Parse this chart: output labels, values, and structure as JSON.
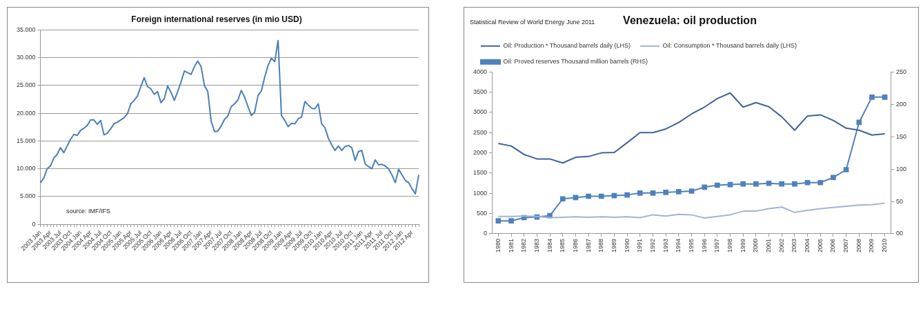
{
  "chart_data": [
    {
      "type": "line",
      "title": "Foreign international reserves (in mio USD)",
      "categories": [
        "2003 Jan",
        null,
        null,
        "2003 Apr",
        null,
        null,
        "2003 Jul",
        null,
        null,
        "2003 Oct",
        null,
        null,
        "2004 Jan",
        null,
        null,
        "2004 Apr",
        null,
        null,
        "2004 Jul",
        null,
        null,
        "2004 Oct",
        null,
        null,
        "2005 Jan",
        null,
        null,
        "2005 Apr",
        null,
        null,
        "2005 Jul",
        null,
        null,
        "2005 Oct",
        null,
        null,
        "2006 Jan",
        null,
        null,
        "2006 Apr",
        null,
        null,
        "2006 Jul",
        null,
        null,
        "2006 Oct",
        null,
        null,
        "2007 Jan",
        null,
        null,
        "2007 Apr",
        null,
        null,
        "2007 Jul",
        null,
        null,
        "2007 Oct",
        null,
        null,
        "2008 Jan",
        null,
        null,
        "2008 Apr",
        null,
        null,
        "2008 Jul",
        null,
        null,
        "2008 Oct",
        null,
        null,
        "2009 Jan",
        null,
        null,
        "2009 Apr",
        null,
        null,
        "2009 Jul",
        null,
        null,
        "2009 Oct",
        null,
        null,
        "2010 Jan",
        null,
        null,
        "2010 Apr",
        null,
        null,
        "2010 Jul",
        null,
        null,
        "2010 Oct",
        null,
        null,
        "2011 Jan",
        null,
        null,
        "2011 Apr",
        null,
        null,
        "2011 Jul",
        null,
        null,
        "2011 Oct",
        null,
        null,
        "2012 Jan",
        null,
        null,
        "2012 Apr",
        null,
        null
      ],
      "series": [
        {
          "color": "#4a7ebb",
          "values": [
            7500,
            8300,
            10000,
            10500,
            11900,
            12600,
            13800,
            12900,
            14100,
            15300,
            16200,
            16000,
            16900,
            17300,
            17800,
            18800,
            18800,
            18000,
            18700,
            16100,
            16400,
            17200,
            18100,
            18400,
            18800,
            19200,
            19900,
            21700,
            22300,
            23100,
            24800,
            26400,
            24800,
            24400,
            23400,
            23900,
            21900,
            22600,
            24900,
            23800,
            22300,
            23900,
            25600,
            27600,
            27300,
            27000,
            28400,
            29400,
            28400,
            25000,
            23900,
            18600,
            16700,
            16800,
            17700,
            18900,
            19500,
            21200,
            21700,
            22400,
            24100,
            22900,
            21200,
            19600,
            20200,
            23200,
            24000,
            26500,
            28600,
            29900,
            29300,
            33100,
            19600,
            18700,
            17600,
            18200,
            18100,
            19000,
            19300,
            22100,
            21500,
            20900,
            20800,
            21700,
            18100,
            17400,
            15500,
            14300,
            13300,
            14100,
            13300,
            14000,
            14200,
            13800,
            11500,
            13100,
            13300,
            10900,
            10400,
            10000,
            11600,
            10700,
            10800,
            10500,
            10000,
            8900,
            7500,
            9900,
            8900,
            7900,
            7500,
            6400,
            5500,
            8900
          ]
        }
      ],
      "ylim": [
        0,
        35000
      ],
      "yticks": [
        {
          "value": 0,
          "label": "0"
        },
        {
          "value": 5000,
          "label": "5.000"
        },
        {
          "value": 10000,
          "label": "10.000"
        },
        {
          "value": 15000,
          "label": "15.000"
        },
        {
          "value": 20000,
          "label": "20.000"
        },
        {
          "value": 25000,
          "label": "25.000"
        },
        {
          "value": 30000,
          "label": "30.000"
        },
        {
          "value": 35000,
          "label": "35.000"
        }
      ],
      "grid": "y",
      "legend": false,
      "marker": "none",
      "annotations": [
        "source: IMF/IFS"
      ]
    },
    {
      "type": "line",
      "title": "Venezuela: oil production",
      "categories": [
        "1980",
        "1981",
        "1982",
        "1983",
        "1984",
        "1985",
        "1986",
        "1987",
        "1988",
        "1989",
        "1990",
        "1991",
        "1992",
        "1993",
        "1994",
        "1995",
        "1996",
        "1997",
        "1998",
        "1999",
        "2000",
        "2001",
        "2002",
        "2003",
        "2004",
        "2005",
        "2006",
        "2007",
        "2008",
        "2009",
        "2010"
      ],
      "series": [
        {
          "name": "Oil: Production * Thousand barrels daily (LHS)",
          "color": "#3c6399",
          "marker": "none",
          "values": [
            2230,
            2170,
            1960,
            1850,
            1850,
            1750,
            1890,
            1910,
            2000,
            2010,
            2250,
            2500,
            2500,
            2590,
            2750,
            2960,
            3130,
            3340,
            3480,
            3130,
            3240,
            3140,
            2890,
            2560,
            2910,
            2940,
            2800,
            2610,
            2560,
            2440,
            2470
          ]
        },
        {
          "name": "Oil: Consumption * Thousand barrels daily (LHS)",
          "color": "#9fb4d6",
          "marker": "none",
          "values": [
            430,
            430,
            440,
            430,
            400,
            410,
            420,
            410,
            420,
            410,
            420,
            400,
            470,
            440,
            480,
            470,
            390,
            430,
            470,
            560,
            560,
            620,
            660,
            530,
            580,
            620,
            650,
            680,
            710,
            720,
            760
          ]
        },
        {
          "name": "Oil: Proved reserves Thousand million barrels (RHS)",
          "color": "#4f81bd",
          "marker": "square",
          "axis": "y2",
          "values": [
            20,
            20,
            25,
            26,
            28,
            54,
            56,
            58,
            58,
            59,
            60,
            63,
            63,
            64,
            65,
            66,
            72,
            75,
            76,
            77,
            77,
            78,
            77,
            77,
            79,
            79,
            87,
            99,
            172,
            211,
            211
          ]
        }
      ],
      "ylim": [
        0,
        4000
      ],
      "yticks": [
        0,
        500,
        1000,
        1500,
        2000,
        2500,
        3000,
        3500,
        4000
      ],
      "y2lim": [
        0,
        250
      ],
      "y2ticks": [
        {
          "value": 0,
          "label": "00"
        },
        50,
        100,
        150,
        200,
        250
      ],
      "grid": false,
      "legend": "top",
      "annotations": [
        "Statistical Review of World Energy June 2011"
      ]
    }
  ]
}
